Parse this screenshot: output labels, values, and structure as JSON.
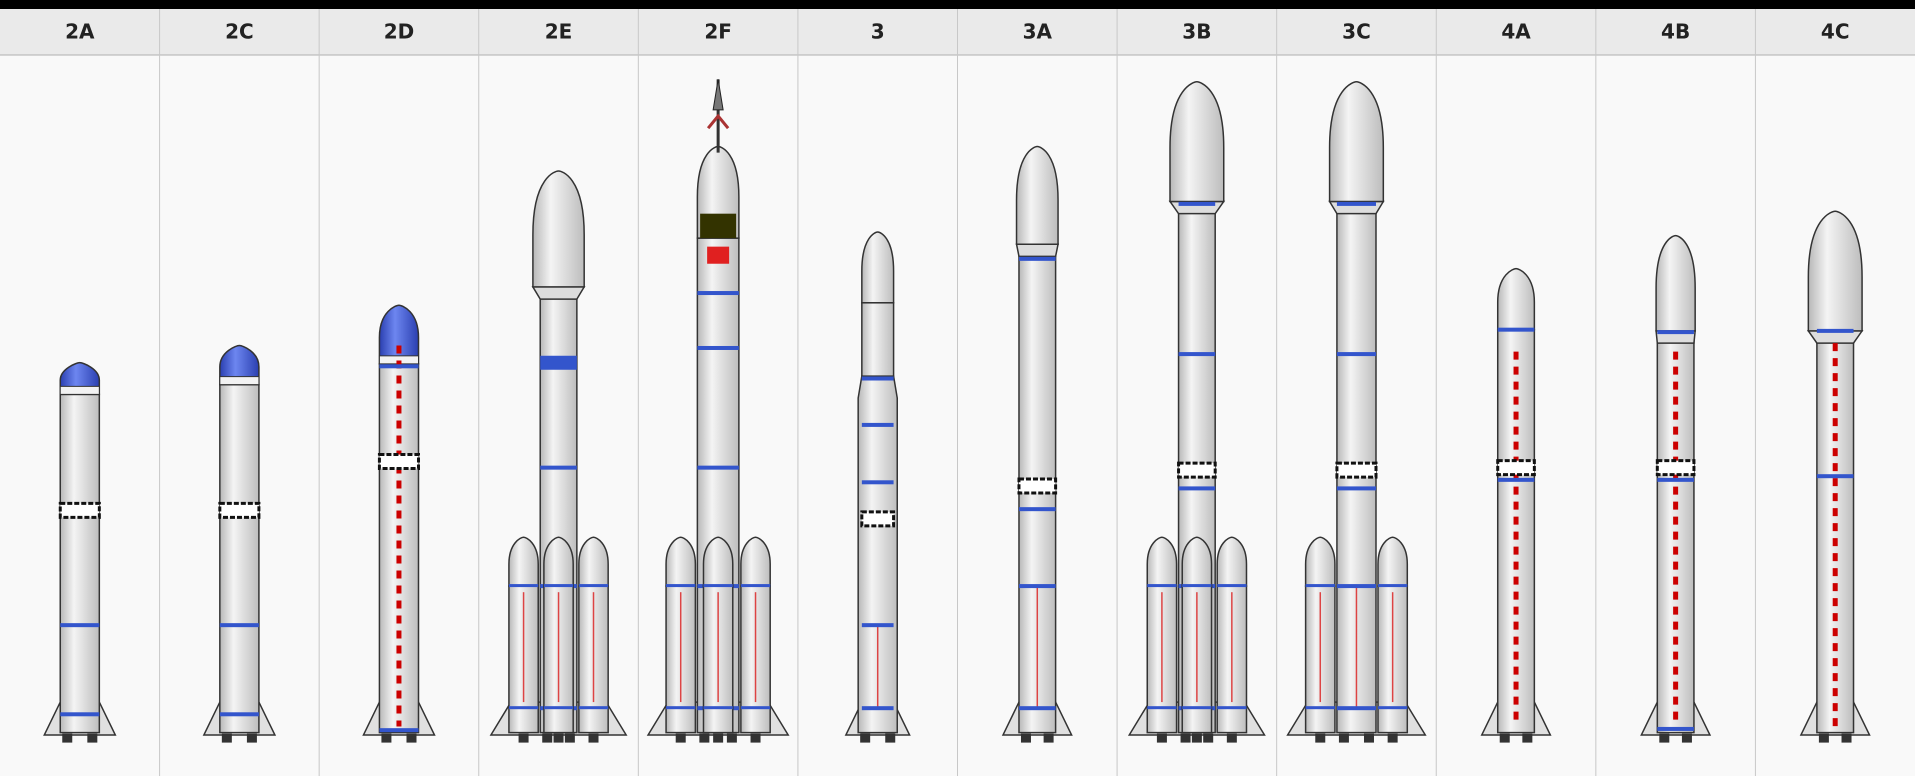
{
  "table": {
    "headers": [
      "2A",
      "2C",
      "2D",
      "2E",
      "2F",
      "3",
      "3A",
      "3B",
      "3C",
      "4A",
      "4B",
      "4C"
    ]
  }
}
